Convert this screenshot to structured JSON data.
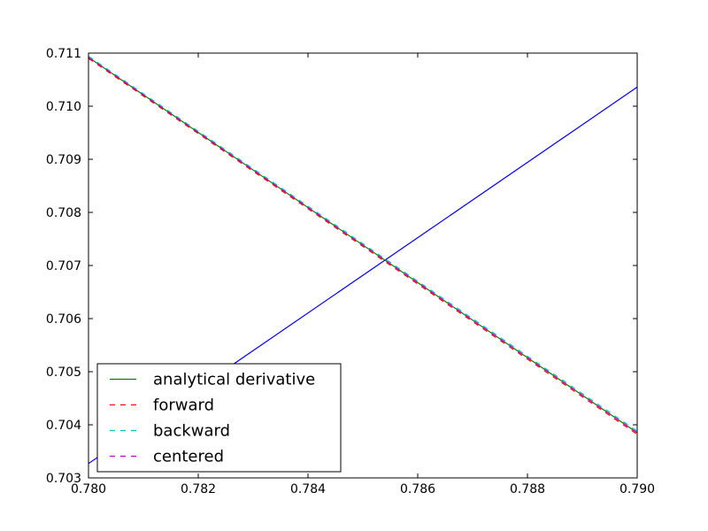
{
  "chart_data": {
    "type": "line",
    "xlim": [
      0.78,
      0.79
    ],
    "ylim": [
      0.703,
      0.711
    ],
    "x_ticks": [
      "0.780",
      "0.782",
      "0.784",
      "0.786",
      "0.788",
      "0.790"
    ],
    "y_ticks": [
      "0.703",
      "0.704",
      "0.705",
      "0.706",
      "0.707",
      "0.708",
      "0.709",
      "0.710",
      "0.711"
    ],
    "grid": false,
    "legend_position": "lower-left",
    "series": [
      {
        "key": "blue",
        "color": "#0000ff",
        "style": "solid",
        "in_legend": false,
        "points": [
          [
            0.78,
            0.70327
          ],
          [
            0.79,
            0.71036
          ]
        ]
      },
      {
        "key": "analytical",
        "name": "analytical derivative",
        "color": "#008000",
        "style": "solid",
        "in_legend": true,
        "points": [
          [
            0.78,
            0.71092
          ],
          [
            0.79,
            0.70385
          ]
        ]
      },
      {
        "key": "forward",
        "name": "forward",
        "color": "#ff0000",
        "style": "dashed",
        "in_legend": true,
        "points": [
          [
            0.78,
            0.7109
          ],
          [
            0.79,
            0.70382
          ]
        ]
      },
      {
        "key": "backward",
        "name": "backward",
        "color": "#00bfbf",
        "style": "dashed",
        "in_legend": true,
        "points": [
          [
            0.78,
            0.71094
          ],
          [
            0.79,
            0.70388
          ]
        ]
      },
      {
        "key": "centered",
        "name": "centered",
        "color": "#bf00bf",
        "style": "dashed",
        "in_legend": true,
        "points": [
          [
            0.78,
            0.71092
          ],
          [
            0.79,
            0.70385
          ]
        ]
      }
    ]
  }
}
